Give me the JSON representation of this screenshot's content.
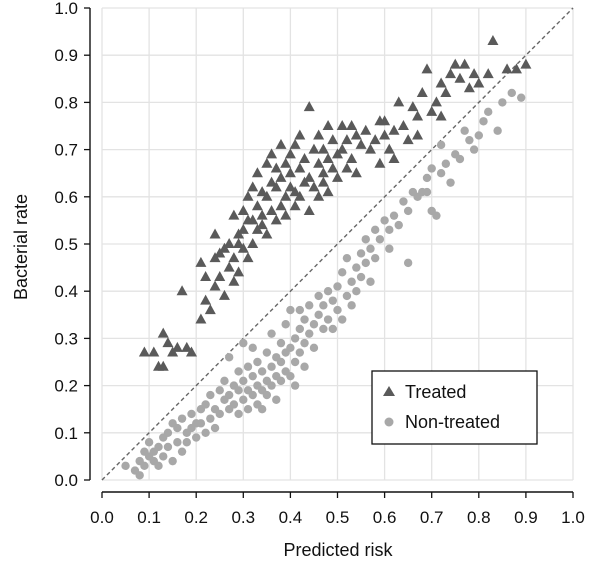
{
  "chart_data": {
    "type": "scatter",
    "title": "",
    "xlabel": "Predicted risk",
    "ylabel": "Bacterial rate",
    "xlim": [
      0.0,
      1.0
    ],
    "ylim": [
      0.0,
      1.0
    ],
    "xticks": [
      "0.0",
      "0.1",
      "0.2",
      "0.3",
      "0.4",
      "0.5",
      "0.6",
      "0.7",
      "0.8",
      "0.9",
      "1.0"
    ],
    "yticks": [
      "0.0",
      "0.1",
      "0.2",
      "0.3",
      "0.4",
      "0.5",
      "0.6",
      "0.7",
      "0.8",
      "0.9",
      "1.0"
    ],
    "grid": true,
    "reference_line": {
      "x": [
        0.0,
        1.0
      ],
      "y": [
        0.0,
        1.0
      ],
      "style": "dashed"
    },
    "legend": {
      "position": "lower-right"
    },
    "series": [
      {
        "name": "Treated",
        "marker": "triangle",
        "color": "#5a5a5a",
        "points": [
          [
            0.09,
            0.27
          ],
          [
            0.11,
            0.27
          ],
          [
            0.12,
            0.24
          ],
          [
            0.13,
            0.24
          ],
          [
            0.13,
            0.31
          ],
          [
            0.14,
            0.29
          ],
          [
            0.15,
            0.27
          ],
          [
            0.16,
            0.28
          ],
          [
            0.17,
            0.4
          ],
          [
            0.18,
            0.28
          ],
          [
            0.19,
            0.27
          ],
          [
            0.21,
            0.34
          ],
          [
            0.21,
            0.46
          ],
          [
            0.22,
            0.43
          ],
          [
            0.22,
            0.38
          ],
          [
            0.23,
            0.36
          ],
          [
            0.24,
            0.47
          ],
          [
            0.24,
            0.41
          ],
          [
            0.24,
            0.52
          ],
          [
            0.25,
            0.48
          ],
          [
            0.25,
            0.43
          ],
          [
            0.26,
            0.49
          ],
          [
            0.26,
            0.39
          ],
          [
            0.27,
            0.45
          ],
          [
            0.27,
            0.5
          ],
          [
            0.28,
            0.42
          ],
          [
            0.28,
            0.47
          ],
          [
            0.28,
            0.56
          ],
          [
            0.29,
            0.5
          ],
          [
            0.29,
            0.44
          ],
          [
            0.29,
            0.52
          ],
          [
            0.3,
            0.57
          ],
          [
            0.3,
            0.49
          ],
          [
            0.3,
            0.53
          ],
          [
            0.31,
            0.6
          ],
          [
            0.31,
            0.55
          ],
          [
            0.31,
            0.47
          ],
          [
            0.32,
            0.55
          ],
          [
            0.32,
            0.62
          ],
          [
            0.32,
            0.5
          ],
          [
            0.33,
            0.53
          ],
          [
            0.33,
            0.65
          ],
          [
            0.33,
            0.58
          ],
          [
            0.34,
            0.56
          ],
          [
            0.34,
            0.61
          ],
          [
            0.34,
            0.54
          ],
          [
            0.35,
            0.67
          ],
          [
            0.35,
            0.6
          ],
          [
            0.35,
            0.52
          ],
          [
            0.36,
            0.63
          ],
          [
            0.36,
            0.57
          ],
          [
            0.36,
            0.69
          ],
          [
            0.37,
            0.62
          ],
          [
            0.37,
            0.55
          ],
          [
            0.37,
            0.66
          ],
          [
            0.38,
            0.58
          ],
          [
            0.38,
            0.64
          ],
          [
            0.38,
            0.71
          ],
          [
            0.39,
            0.6
          ],
          [
            0.39,
            0.67
          ],
          [
            0.39,
            0.56
          ],
          [
            0.4,
            0.62
          ],
          [
            0.4,
            0.69
          ],
          [
            0.4,
            0.65
          ],
          [
            0.41,
            0.58
          ],
          [
            0.41,
            0.71
          ],
          [
            0.41,
            0.61
          ],
          [
            0.42,
            0.66
          ],
          [
            0.42,
            0.73
          ],
          [
            0.42,
            0.6
          ],
          [
            0.43,
            0.63
          ],
          [
            0.43,
            0.68
          ],
          [
            0.44,
            0.79
          ],
          [
            0.44,
            0.64
          ],
          [
            0.44,
            0.57
          ],
          [
            0.45,
            0.7
          ],
          [
            0.45,
            0.62
          ],
          [
            0.46,
            0.67
          ],
          [
            0.46,
            0.73
          ],
          [
            0.46,
            0.6
          ],
          [
            0.47,
            0.65
          ],
          [
            0.47,
            0.7
          ],
          [
            0.47,
            0.63
          ],
          [
            0.48,
            0.68
          ],
          [
            0.48,
            0.75
          ],
          [
            0.48,
            0.61
          ],
          [
            0.49,
            0.66
          ],
          [
            0.49,
            0.72
          ],
          [
            0.5,
            0.69
          ],
          [
            0.5,
            0.64
          ],
          [
            0.51,
            0.75
          ],
          [
            0.51,
            0.7
          ],
          [
            0.52,
            0.66
          ],
          [
            0.52,
            0.72
          ],
          [
            0.53,
            0.75
          ],
          [
            0.53,
            0.68
          ],
          [
            0.54,
            0.73
          ],
          [
            0.54,
            0.65
          ],
          [
            0.55,
            0.71
          ],
          [
            0.56,
            0.74
          ],
          [
            0.57,
            0.7
          ],
          [
            0.58,
            0.72
          ],
          [
            0.59,
            0.76
          ],
          [
            0.59,
            0.67
          ],
          [
            0.6,
            0.73
          ],
          [
            0.6,
            0.76
          ],
          [
            0.61,
            0.7
          ],
          [
            0.62,
            0.74
          ],
          [
            0.62,
            0.68
          ],
          [
            0.63,
            0.8
          ],
          [
            0.64,
            0.75
          ],
          [
            0.65,
            0.72
          ],
          [
            0.66,
            0.79
          ],
          [
            0.67,
            0.77
          ],
          [
            0.67,
            0.73
          ],
          [
            0.68,
            0.82
          ],
          [
            0.69,
            0.87
          ],
          [
            0.7,
            0.78
          ],
          [
            0.71,
            0.8
          ],
          [
            0.72,
            0.84
          ],
          [
            0.72,
            0.77
          ],
          [
            0.73,
            0.82
          ],
          [
            0.74,
            0.86
          ],
          [
            0.75,
            0.88
          ],
          [
            0.76,
            0.85
          ],
          [
            0.77,
            0.88
          ],
          [
            0.78,
            0.83
          ],
          [
            0.79,
            0.86
          ],
          [
            0.8,
            0.84
          ],
          [
            0.82,
            0.86
          ],
          [
            0.83,
            0.93
          ],
          [
            0.86,
            0.87
          ],
          [
            0.88,
            0.87
          ],
          [
            0.9,
            0.88
          ]
        ]
      },
      {
        "name": "Non-treated",
        "marker": "circle",
        "color": "#a8a8a8",
        "points": [
          [
            0.05,
            0.03
          ],
          [
            0.07,
            0.02
          ],
          [
            0.08,
            0.04
          ],
          [
            0.08,
            0.01
          ],
          [
            0.09,
            0.06
          ],
          [
            0.09,
            0.03
          ],
          [
            0.1,
            0.05
          ],
          [
            0.1,
            0.08
          ],
          [
            0.11,
            0.04
          ],
          [
            0.11,
            0.06
          ],
          [
            0.12,
            0.07
          ],
          [
            0.12,
            0.03
          ],
          [
            0.13,
            0.09
          ],
          [
            0.13,
            0.05
          ],
          [
            0.14,
            0.1
          ],
          [
            0.14,
            0.07
          ],
          [
            0.15,
            0.04
          ],
          [
            0.15,
            0.12
          ],
          [
            0.16,
            0.08
          ],
          [
            0.16,
            0.11
          ],
          [
            0.17,
            0.06
          ],
          [
            0.17,
            0.13
          ],
          [
            0.18,
            0.1
          ],
          [
            0.18,
            0.08
          ],
          [
            0.19,
            0.14
          ],
          [
            0.19,
            0.11
          ],
          [
            0.2,
            0.12
          ],
          [
            0.2,
            0.09
          ],
          [
            0.21,
            0.15
          ],
          [
            0.21,
            0.12
          ],
          [
            0.22,
            0.1
          ],
          [
            0.22,
            0.16
          ],
          [
            0.23,
            0.13
          ],
          [
            0.23,
            0.18
          ],
          [
            0.24,
            0.11
          ],
          [
            0.24,
            0.15
          ],
          [
            0.25,
            0.19
          ],
          [
            0.25,
            0.14
          ],
          [
            0.26,
            0.17
          ],
          [
            0.26,
            0.21
          ],
          [
            0.27,
            0.15
          ],
          [
            0.27,
            0.18
          ],
          [
            0.27,
            0.26
          ],
          [
            0.28,
            0.16
          ],
          [
            0.28,
            0.2
          ],
          [
            0.29,
            0.14
          ],
          [
            0.29,
            0.23
          ],
          [
            0.29,
            0.19
          ],
          [
            0.3,
            0.17
          ],
          [
            0.3,
            0.21
          ],
          [
            0.3,
            0.29
          ],
          [
            0.31,
            0.15
          ],
          [
            0.31,
            0.19
          ],
          [
            0.31,
            0.24
          ],
          [
            0.32,
            0.18
          ],
          [
            0.32,
            0.22
          ],
          [
            0.32,
            0.28
          ],
          [
            0.33,
            0.16
          ],
          [
            0.33,
            0.2
          ],
          [
            0.33,
            0.25
          ],
          [
            0.34,
            0.19
          ],
          [
            0.34,
            0.23
          ],
          [
            0.34,
            0.15
          ],
          [
            0.35,
            0.21
          ],
          [
            0.35,
            0.27
          ],
          [
            0.35,
            0.18
          ],
          [
            0.36,
            0.24
          ],
          [
            0.36,
            0.2
          ],
          [
            0.36,
            0.31
          ],
          [
            0.37,
            0.22
          ],
          [
            0.37,
            0.26
          ],
          [
            0.37,
            0.17
          ],
          [
            0.38,
            0.25
          ],
          [
            0.38,
            0.29
          ],
          [
            0.38,
            0.21
          ],
          [
            0.39,
            0.27
          ],
          [
            0.39,
            0.23
          ],
          [
            0.39,
            0.33
          ],
          [
            0.4,
            0.22
          ],
          [
            0.4,
            0.28
          ],
          [
            0.4,
            0.36
          ],
          [
            0.41,
            0.25
          ],
          [
            0.41,
            0.3
          ],
          [
            0.41,
            0.2
          ],
          [
            0.42,
            0.32
          ],
          [
            0.42,
            0.27
          ],
          [
            0.42,
            0.36
          ],
          [
            0.43,
            0.29
          ],
          [
            0.43,
            0.34
          ],
          [
            0.43,
            0.24
          ],
          [
            0.44,
            0.31
          ],
          [
            0.44,
            0.37
          ],
          [
            0.45,
            0.33
          ],
          [
            0.45,
            0.28
          ],
          [
            0.46,
            0.35
          ],
          [
            0.46,
            0.39
          ],
          [
            0.47,
            0.32
          ],
          [
            0.47,
            0.37
          ],
          [
            0.48,
            0.34
          ],
          [
            0.48,
            0.4
          ],
          [
            0.49,
            0.32
          ],
          [
            0.49,
            0.38
          ],
          [
            0.5,
            0.36
          ],
          [
            0.5,
            0.41
          ],
          [
            0.51,
            0.34
          ],
          [
            0.51,
            0.44
          ],
          [
            0.52,
            0.39
          ],
          [
            0.52,
            0.47
          ],
          [
            0.53,
            0.42
          ],
          [
            0.53,
            0.37
          ],
          [
            0.54,
            0.45
          ],
          [
            0.54,
            0.4
          ],
          [
            0.55,
            0.48
          ],
          [
            0.55,
            0.43
          ],
          [
            0.56,
            0.46
          ],
          [
            0.56,
            0.51
          ],
          [
            0.57,
            0.42
          ],
          [
            0.57,
            0.49
          ],
          [
            0.58,
            0.53
          ],
          [
            0.58,
            0.47
          ],
          [
            0.59,
            0.51
          ],
          [
            0.6,
            0.55
          ],
          [
            0.61,
            0.49
          ],
          [
            0.61,
            0.53
          ],
          [
            0.62,
            0.56
          ],
          [
            0.63,
            0.54
          ],
          [
            0.64,
            0.59
          ],
          [
            0.65,
            0.46
          ],
          [
            0.65,
            0.57
          ],
          [
            0.66,
            0.61
          ],
          [
            0.67,
            0.6
          ],
          [
            0.68,
            0.61
          ],
          [
            0.69,
            0.64
          ],
          [
            0.69,
            0.61
          ],
          [
            0.7,
            0.66
          ],
          [
            0.7,
            0.57
          ],
          [
            0.71,
            0.56
          ],
          [
            0.72,
            0.65
          ],
          [
            0.72,
            0.71
          ],
          [
            0.73,
            0.67
          ],
          [
            0.74,
            0.63
          ],
          [
            0.75,
            0.69
          ],
          [
            0.76,
            0.68
          ],
          [
            0.77,
            0.74
          ],
          [
            0.78,
            0.72
          ],
          [
            0.79,
            0.7
          ],
          [
            0.8,
            0.73
          ],
          [
            0.81,
            0.76
          ],
          [
            0.82,
            0.78
          ],
          [
            0.84,
            0.74
          ],
          [
            0.85,
            0.8
          ],
          [
            0.87,
            0.82
          ],
          [
            0.89,
            0.81
          ]
        ]
      }
    ]
  }
}
